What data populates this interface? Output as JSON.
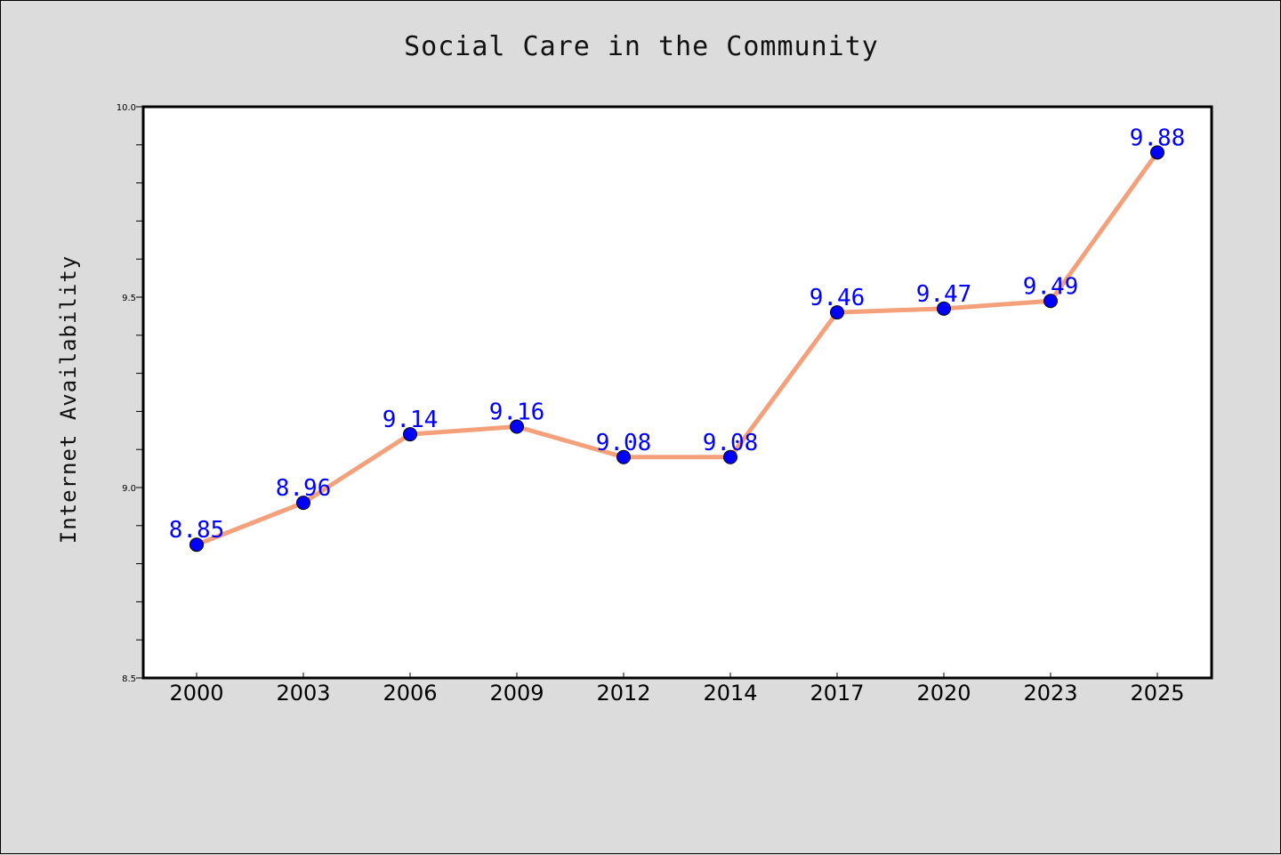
{
  "chart_data": {
    "type": "line",
    "title": "Social Care in the Community",
    "xlabel": "",
    "ylabel": "Internet Availability",
    "categories": [
      "2000",
      "2003",
      "2006",
      "2009",
      "2012",
      "2014",
      "2017",
      "2020",
      "2023",
      "2025"
    ],
    "series": [
      {
        "values": [
          8.85,
          8.96,
          9.14,
          9.16,
          9.08,
          9.08,
          9.46,
          9.47,
          9.49,
          9.88
        ],
        "data_labels": [
          "8.85",
          "8.96",
          "9.14",
          "9.16",
          "9.08",
          "9.08",
          "9.46",
          "9.47",
          "9.49",
          "9.88"
        ],
        "line_color": "#f4a07a",
        "marker_color": "#0000ff"
      }
    ],
    "ylim": [
      8.5,
      10.0
    ],
    "yticks": [
      "8.5",
      "9.0",
      "9.5",
      "10.0"
    ],
    "ytick_values": [
      8.5,
      9.0,
      9.5,
      10.0
    ],
    "grid": false,
    "legend": "none"
  }
}
